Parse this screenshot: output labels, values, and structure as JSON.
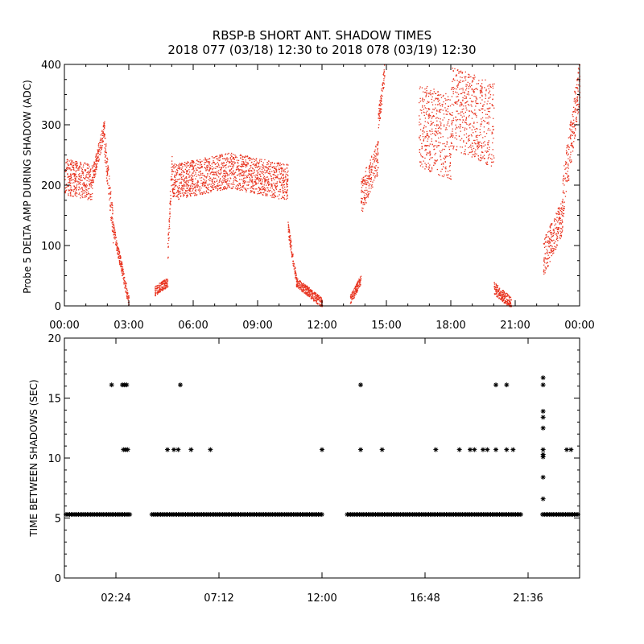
{
  "title_line1": "RBSP-B SHORT ANT. SHADOW TIMES",
  "title_line2": "2018 077 (03/18) 12:30 to 2018 078 (03/19) 12:30",
  "chart_data": [
    {
      "type": "scatter",
      "ylabel": "Probe 5 DELTA AMP DURING SHADOW (ADC)",
      "xlim_hours": [
        0,
        24
      ],
      "ylim": [
        0,
        400
      ],
      "x_tick_labels": [
        "00:00",
        "03:00",
        "06:00",
        "09:00",
        "12:00",
        "15:00",
        "18:00",
        "21:00",
        "00:00"
      ],
      "x_tick_hours": [
        0,
        3,
        6,
        9,
        12,
        15,
        18,
        21,
        24
      ],
      "y_tick_labels": [
        "0",
        "100",
        "200",
        "300",
        "400"
      ],
      "y_ticks": [
        0,
        100,
        200,
        300,
        400
      ],
      "point_color": "#e8321e",
      "segments": [
        {
          "x_start": 0.0,
          "x_end": 1.3,
          "y_start": 215,
          "y_end": 205,
          "spread": 30
        },
        {
          "x_start": 1.3,
          "x_end": 1.85,
          "y_start": 215,
          "y_end": 295,
          "spread": 15
        },
        {
          "x_start": 1.85,
          "x_end": 2.25,
          "y_start": 270,
          "y_end": 130,
          "spread": 25
        },
        {
          "x_start": 2.25,
          "x_end": 3.0,
          "y_start": 130,
          "y_end": 5,
          "spread": 10
        },
        {
          "x_start": 4.2,
          "x_end": 4.8,
          "y_start": 25,
          "y_end": 40,
          "spread": 8
        },
        {
          "x_start": 4.8,
          "x_end": 5.0,
          "y_start": 90,
          "y_end": 240,
          "spread": 20
        },
        {
          "x_start": 5.0,
          "x_end": 7.7,
          "y_start": 205,
          "y_end": 225,
          "spread": 30
        },
        {
          "x_start": 7.7,
          "x_end": 10.4,
          "y_start": 225,
          "y_end": 205,
          "spread": 30
        },
        {
          "x_start": 10.4,
          "x_end": 10.8,
          "y_start": 130,
          "y_end": 40,
          "spread": 10
        },
        {
          "x_start": 10.8,
          "x_end": 12.0,
          "y_start": 40,
          "y_end": 5,
          "spread": 8
        },
        {
          "x_start": 13.3,
          "x_end": 13.8,
          "y_start": 10,
          "y_end": 45,
          "spread": 8
        },
        {
          "x_start": 13.8,
          "x_end": 14.6,
          "y_start": 180,
          "y_end": 250,
          "spread": 30
        },
        {
          "x_start": 14.6,
          "x_end": 14.9,
          "y_start": 300,
          "y_end": 390,
          "spread": 20
        },
        {
          "x_start": 16.5,
          "x_end": 18.0,
          "y_start": 300,
          "y_end": 280,
          "spread": 70
        },
        {
          "x_start": 18.0,
          "x_end": 20.0,
          "y_start": 330,
          "y_end": 300,
          "spread": 70
        },
        {
          "x_start": 20.0,
          "x_end": 20.8,
          "y_start": 30,
          "y_end": 5,
          "spread": 10
        },
        {
          "x_start": 22.3,
          "x_end": 23.2,
          "y_start": 80,
          "y_end": 150,
          "spread": 30
        },
        {
          "x_start": 23.2,
          "x_end": 24.0,
          "y_start": 180,
          "y_end": 380,
          "spread": 40
        }
      ]
    },
    {
      "type": "scatter",
      "ylabel": "TIME BETWEEN SHADOWS (SEC)",
      "xlim_hours": [
        0,
        24
      ],
      "ylim": [
        0,
        20
      ],
      "x_tick_labels": [
        "02:24",
        "07:12",
        "12:00",
        "16:48",
        "21:36"
      ],
      "x_tick_hours": [
        2.4,
        7.2,
        12.0,
        16.8,
        21.6
      ],
      "y_tick_labels": [
        "0",
        "5",
        "10",
        "15",
        "20"
      ],
      "y_ticks": [
        0,
        5,
        10,
        15,
        20
      ],
      "point_color": "#000000",
      "marker": "asterisk",
      "baseline_value": 5.3,
      "baseline_ranges_hours": [
        [
          0.0,
          3.1
        ],
        [
          4.0,
          12.1
        ],
        [
          13.1,
          21.3
        ],
        [
          22.2,
          24.0
        ]
      ],
      "points": [
        {
          "x": 2.2,
          "y": 16.1
        },
        {
          "x": 2.7,
          "y": 16.1
        },
        {
          "x": 2.8,
          "y": 16.1
        },
        {
          "x": 2.9,
          "y": 16.1
        },
        {
          "x": 2.75,
          "y": 10.7
        },
        {
          "x": 2.85,
          "y": 10.7
        },
        {
          "x": 2.95,
          "y": 10.7
        },
        {
          "x": 4.8,
          "y": 10.7
        },
        {
          "x": 5.1,
          "y": 10.7
        },
        {
          "x": 5.3,
          "y": 10.7
        },
        {
          "x": 5.4,
          "y": 16.1
        },
        {
          "x": 5.9,
          "y": 10.7
        },
        {
          "x": 6.8,
          "y": 10.7
        },
        {
          "x": 12.0,
          "y": 10.7
        },
        {
          "x": 13.8,
          "y": 16.1
        },
        {
          "x": 13.8,
          "y": 10.7
        },
        {
          "x": 14.8,
          "y": 10.7
        },
        {
          "x": 17.3,
          "y": 10.7
        },
        {
          "x": 18.4,
          "y": 10.7
        },
        {
          "x": 18.9,
          "y": 10.7
        },
        {
          "x": 19.1,
          "y": 10.7
        },
        {
          "x": 19.5,
          "y": 10.7
        },
        {
          "x": 19.7,
          "y": 10.7
        },
        {
          "x": 20.1,
          "y": 10.7
        },
        {
          "x": 20.1,
          "y": 16.1
        },
        {
          "x": 20.6,
          "y": 16.1
        },
        {
          "x": 20.6,
          "y": 10.7
        },
        {
          "x": 20.9,
          "y": 10.7
        },
        {
          "x": 22.3,
          "y": 16.7
        },
        {
          "x": 22.3,
          "y": 16.1
        },
        {
          "x": 22.3,
          "y": 13.9
        },
        {
          "x": 22.3,
          "y": 13.4
        },
        {
          "x": 22.3,
          "y": 12.5
        },
        {
          "x": 22.3,
          "y": 10.7
        },
        {
          "x": 22.3,
          "y": 10.3
        },
        {
          "x": 22.3,
          "y": 10.1
        },
        {
          "x": 22.3,
          "y": 8.4
        },
        {
          "x": 22.3,
          "y": 6.6
        },
        {
          "x": 23.4,
          "y": 10.7
        },
        {
          "x": 23.6,
          "y": 10.7
        }
      ]
    }
  ]
}
